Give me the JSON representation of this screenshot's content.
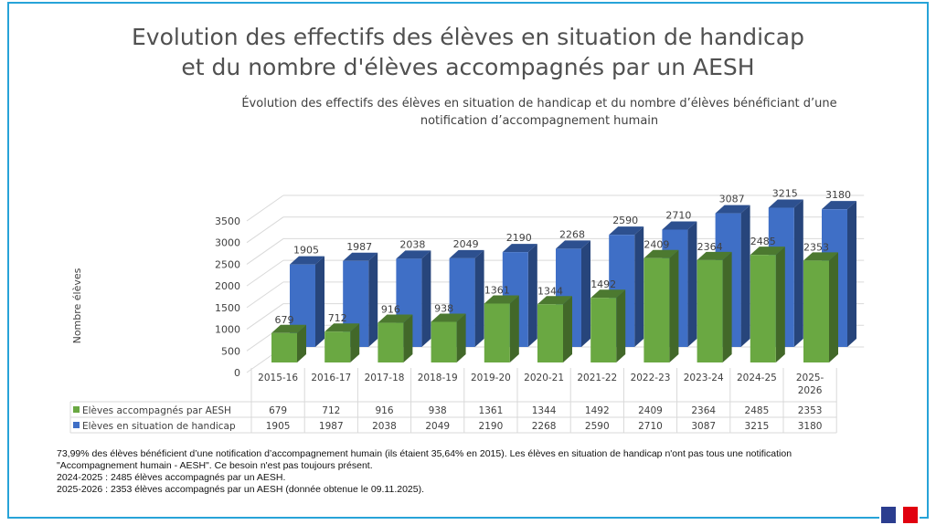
{
  "slide": {
    "title_line1": "Evolution des effectifs des élèves en situation de handicap",
    "title_line2": "et du nombre d'élèves accompagnés par un AESH"
  },
  "chart_data": {
    "type": "bar",
    "title_line1": "Évolution des effectifs des élèves en situation de handicap et du nombre d’élèves bénéficiant d’une",
    "title_line2": "notification d’accompagnement humain",
    "xlabel": "",
    "ylabel": "Nombre élèves",
    "ylim": [
      0,
      3500
    ],
    "yticks": [
      0,
      500,
      1000,
      1500,
      2000,
      2500,
      3000,
      3500
    ],
    "grid": true,
    "style": "3d-clustered-column-with-data-table",
    "categories": [
      "2015-16",
      "2016-17",
      "2017-18",
      "2018-19",
      "2019-20",
      "2020-21",
      "2021-22",
      "2022-23",
      "2023-24",
      "2024-25",
      "2025-\n2026"
    ],
    "series": [
      {
        "name": "Elèves accompagnés par AESH",
        "color": "#6aa842",
        "values": [
          679,
          712,
          916,
          938,
          1361,
          1344,
          1492,
          2409,
          2364,
          2485,
          2353
        ]
      },
      {
        "name": "Elèves en situation de handicap",
        "color": "#3f6fc6",
        "values": [
          1905,
          1987,
          2038,
          2049,
          2190,
          2268,
          2590,
          2710,
          3087,
          3215,
          3180
        ]
      }
    ]
  },
  "footnote": {
    "line1": "73,99% des élèves bénéficient d’une notification d’accompagnement humain (ils étaient 35,64% en 2015). Les élèves en situation de handicap n'ont pas tous une notification",
    "line2": "\"Accompagnement humain - AESH\". Ce besoin n'est pas toujours présent.",
    "line3": "2024-2025 : 2485 élèves accompagnés par un AESH.",
    "line4": "2025-2026 : 2353 élèves accompagnés par un AESH (donnée obtenue le 09.11.2025)."
  },
  "logo": {
    "name": "marianne-flag-logo"
  }
}
